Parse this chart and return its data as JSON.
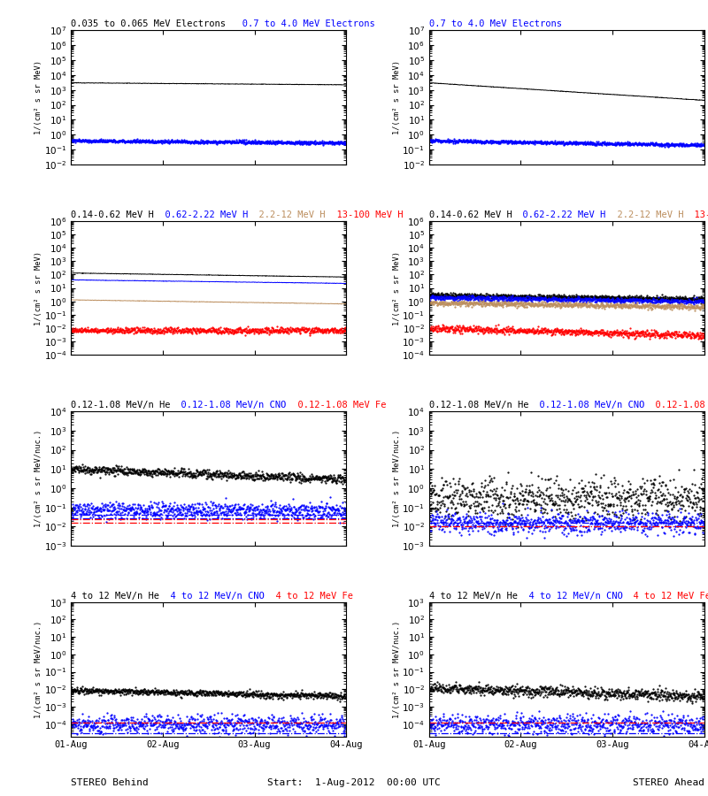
{
  "colors": {
    "black": "#000000",
    "blue": "#0000FF",
    "brown": "#BC8F5F",
    "red": "#FF0000",
    "bg": "#FFFFFF"
  },
  "ylabel_MeV": "1/(cm² s sr MeV)",
  "ylabel_nuc": "1/(cm² s sr MeV/nuc.)",
  "xtick_labels": [
    "01-Aug",
    "02-Aug",
    "03-Aug",
    "04-Aug"
  ],
  "xlabel_left": "STEREO Behind",
  "xlabel_center": "Start:  1-Aug-2012  00:00 UTC",
  "xlabel_right": "STEREO Ahead",
  "titles": {
    "r0": [
      [
        "0.035 to 0.065 MeV Electrons",
        "#000000"
      ],
      [
        "   0.7 to 4.0 MeV Electrons",
        "#0000FF"
      ]
    ],
    "r0r": [
      [
        "0.7 to 4.0 MeV Electrons",
        "#0000FF"
      ]
    ],
    "r1": [
      [
        "0.14-0.62 MeV H",
        "#000000"
      ],
      [
        "  0.62-2.22 MeV H",
        "#0000FF"
      ],
      [
        "  2.2-12 MeV H",
        "#BC8F5F"
      ],
      [
        "  13-100 MeV H",
        "#FF0000"
      ]
    ],
    "r2": [
      [
        "0.12-1.08 MeV/n He",
        "#000000"
      ],
      [
        "  0.12-1.08 MeV/n CNO",
        "#0000FF"
      ],
      [
        "  0.12-1.08 MeV Fe",
        "#FF0000"
      ]
    ],
    "r3": [
      [
        "4 to 12 MeV/n He",
        "#000000"
      ],
      [
        "  4 to 12 MeV/n CNO",
        "#0000FF"
      ],
      [
        "  4 to 12 MeV Fe",
        "#FF0000"
      ]
    ]
  },
  "ylims": {
    "r0": [
      0.01,
      10000000.0
    ],
    "r1": [
      0.0001,
      1000000.0
    ],
    "r2": [
      0.001,
      10000.0
    ],
    "r3": [
      2e-05,
      1000.0
    ]
  }
}
